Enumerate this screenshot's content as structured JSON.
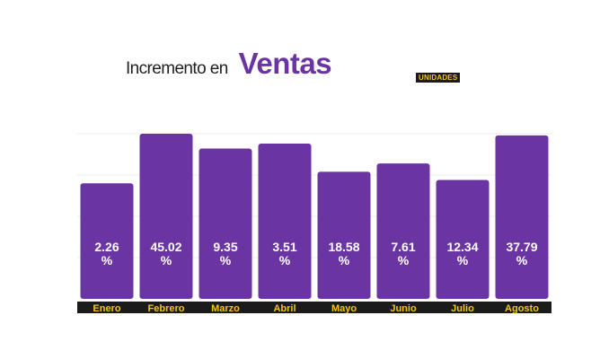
{
  "title": {
    "prefix": "Incremento en",
    "main": "Ventas"
  },
  "badge": "UNIDADES",
  "colors": {
    "bar": "#6a35a3",
    "title_accent": "#6a35a3",
    "label_band": "#1b1b1b",
    "label_text": "#f5c518",
    "value_text": "#ffffff",
    "gridline": "#eeeeee"
  },
  "chart_data": {
    "type": "bar",
    "categories": [
      "Enero",
      "Febrero",
      "Marzo",
      "Abril",
      "Mayo",
      "Junio",
      "Julio",
      "Agosto"
    ],
    "values": [
      2.26,
      45.02,
      9.35,
      3.51,
      18.58,
      7.61,
      12.34,
      37.79
    ],
    "value_labels": [
      "2.26\n%",
      "45.02\n%",
      "9.35\n%",
      "3.51\n%",
      "18.58\n%",
      "7.61\n%",
      "12.34\n%",
      "37.79\n%"
    ],
    "bar_height_index": [
      0.7,
      1.0,
      0.91,
      0.94,
      0.77,
      0.82,
      0.72,
      0.99
    ],
    "grid": true,
    "legend": "none"
  }
}
